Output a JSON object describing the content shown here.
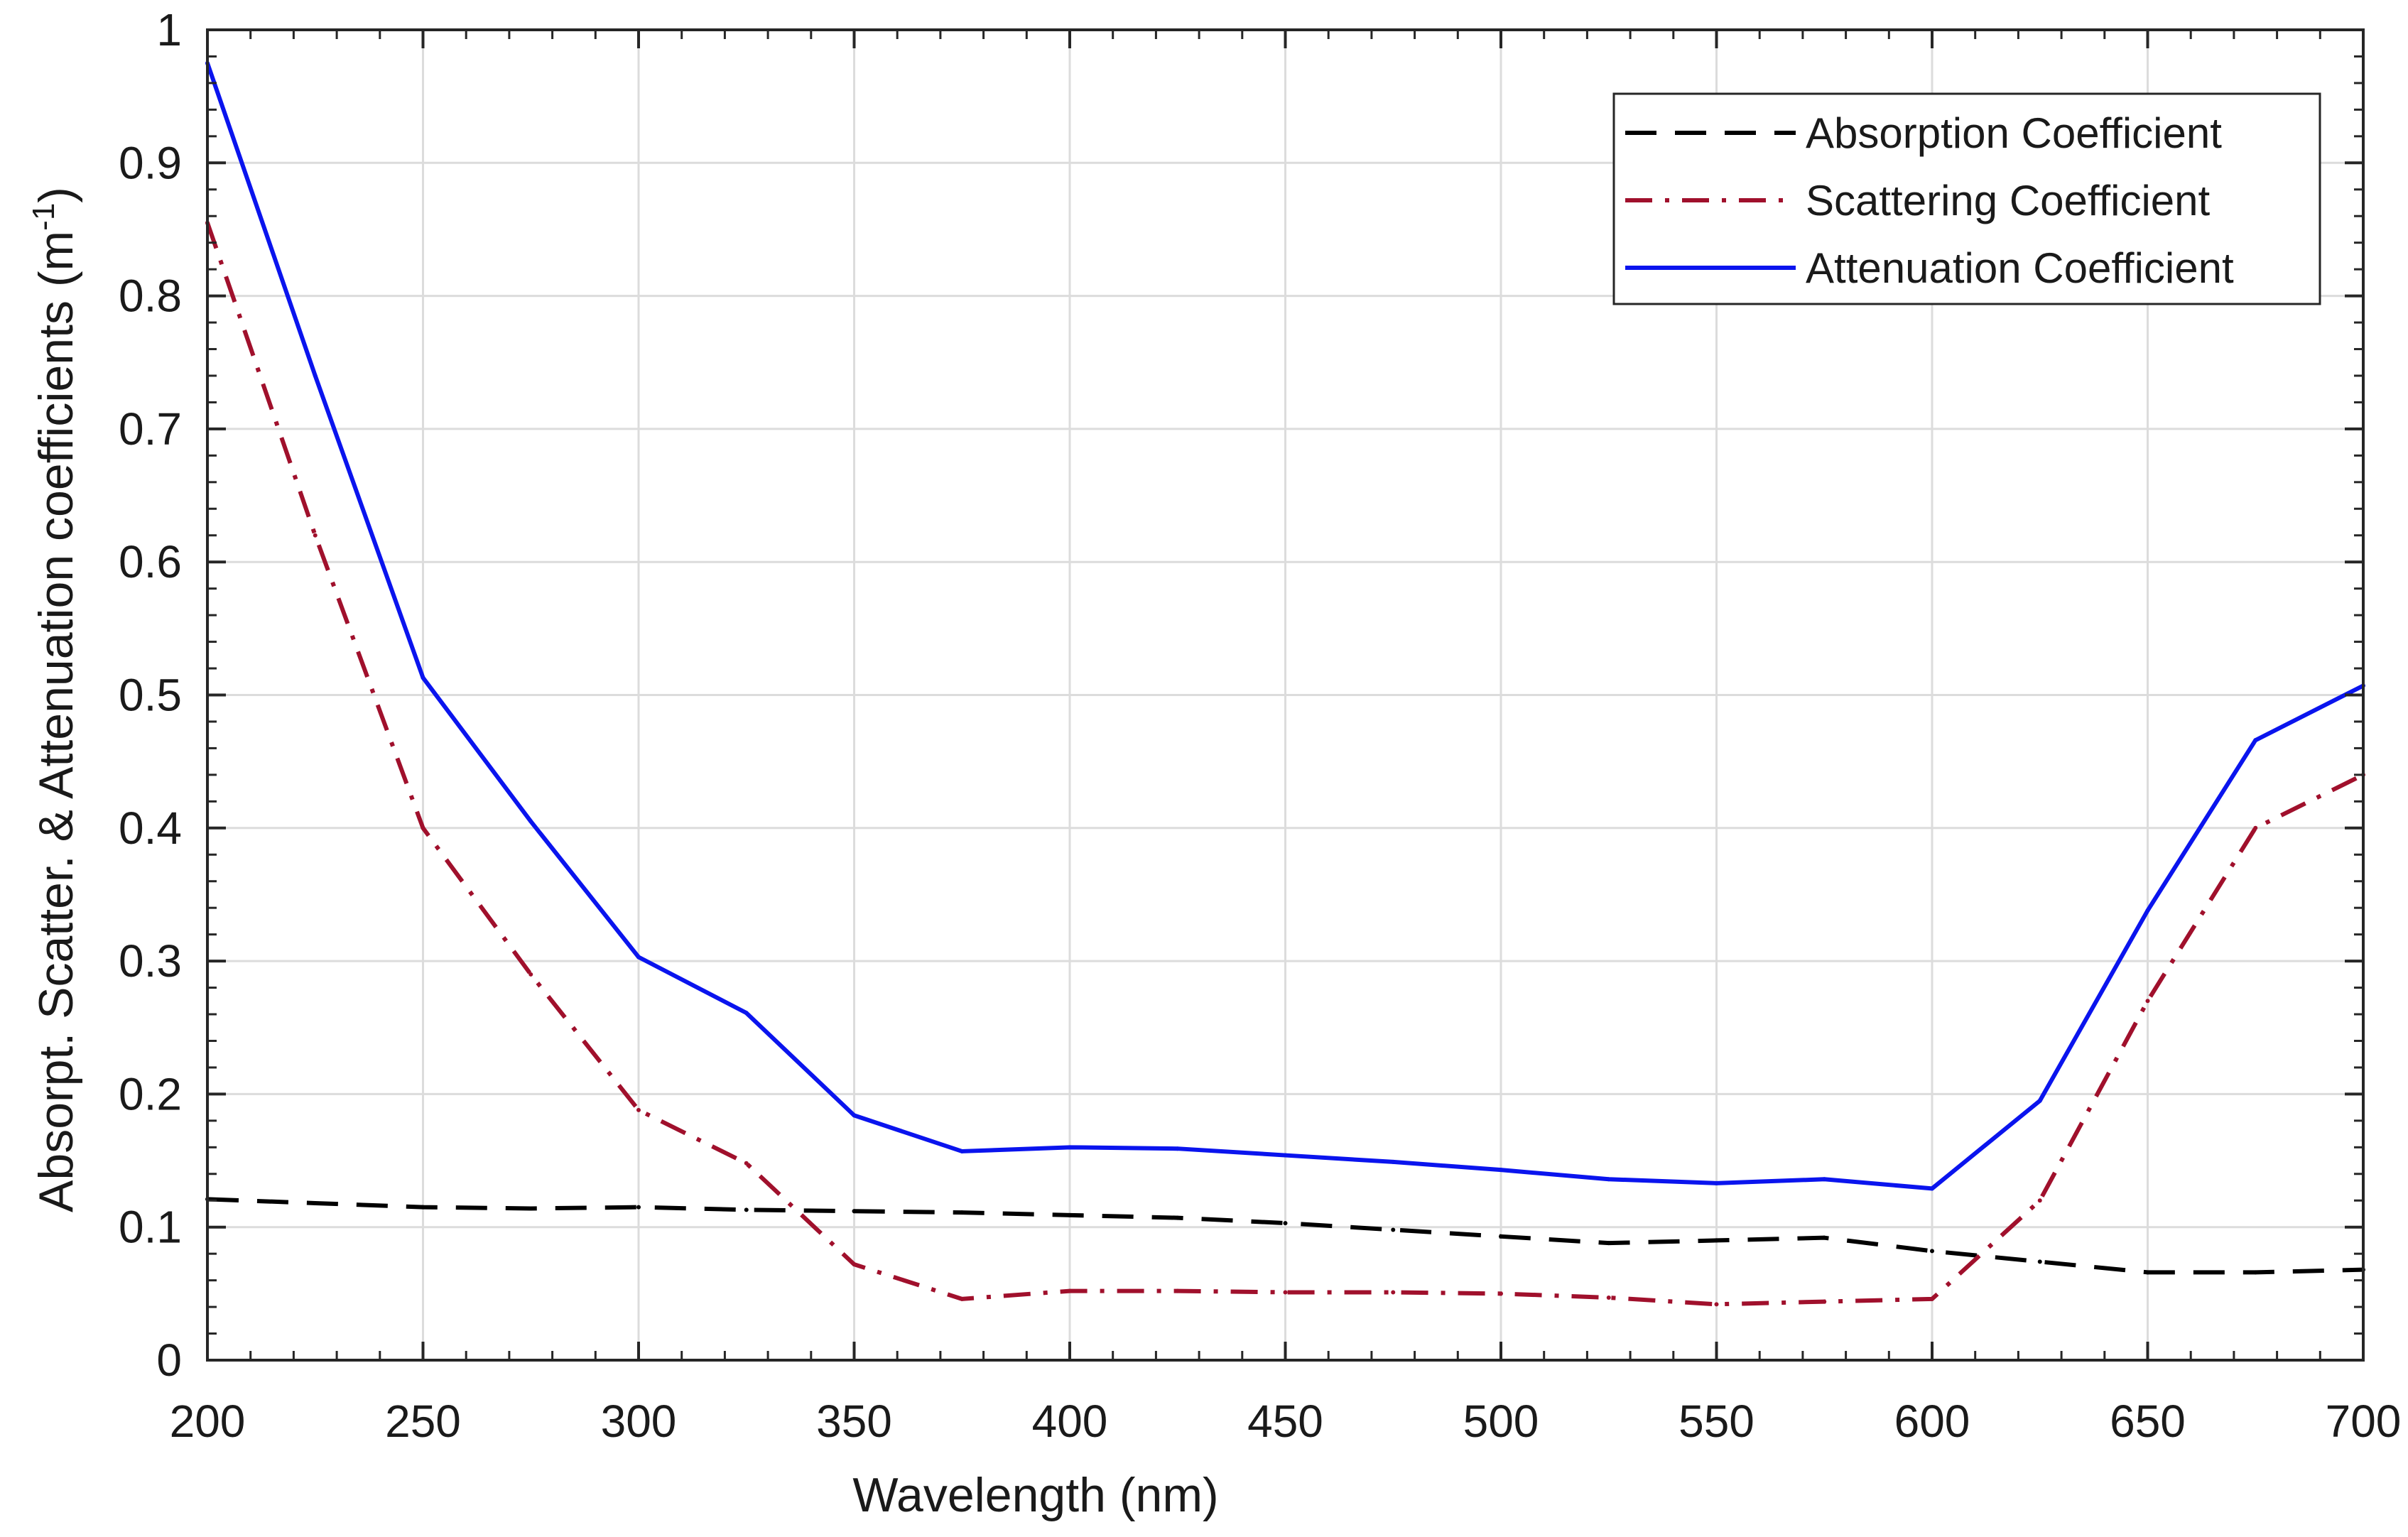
{
  "chart_data": {
    "type": "line",
    "title": "",
    "xlabel": "Wavelength (nm)",
    "ylabel": "Absorpt. Scatter. & Attenuation coefficients (m",
    "ylabel_sup": "-1",
    "ylabel_close": ")",
    "xlim": [
      200,
      700
    ],
    "ylim": [
      0,
      1
    ],
    "grid": true,
    "legend_position": "top-right",
    "x_ticks": [
      "200",
      "250",
      "300",
      "350",
      "400",
      "450",
      "500",
      "550",
      "600",
      "650",
      "700"
    ],
    "y_ticks": [
      "0",
      "0.1",
      "0.2",
      "0.3",
      "0.4",
      "0.5",
      "0.6",
      "0.7",
      "0.8",
      "0.9",
      "1"
    ],
    "x": [
      200,
      225,
      250,
      275,
      300,
      325,
      350,
      375,
      400,
      425,
      450,
      475,
      500,
      525,
      550,
      575,
      600,
      625,
      650,
      675,
      700
    ],
    "series": [
      {
        "name": "Absorption Coefficient",
        "color": "#000000",
        "style": "dashed",
        "values": [
          0.121,
          0.118,
          0.115,
          0.114,
          0.115,
          0.113,
          0.112,
          0.111,
          0.109,
          0.107,
          0.103,
          0.098,
          0.093,
          0.088,
          0.09,
          0.092,
          0.082,
          0.074,
          0.066,
          0.066,
          0.068
        ]
      },
      {
        "name": "Scattering Coefficient",
        "color": "#a0102c",
        "style": "dashdot",
        "values": [
          0.855,
          0.62,
          0.4,
          0.29,
          0.188,
          0.148,
          0.072,
          0.046,
          0.052,
          0.052,
          0.051,
          0.051,
          0.05,
          0.047,
          0.042,
          0.044,
          0.046,
          0.12,
          0.27,
          0.4,
          0.44
        ]
      },
      {
        "name": "Attenuation Coefficient",
        "color": "#0a14ee",
        "style": "solid",
        "values": [
          0.975,
          0.74,
          0.513,
          0.405,
          0.303,
          0.261,
          0.184,
          0.157,
          0.16,
          0.159,
          0.154,
          0.149,
          0.143,
          0.136,
          0.133,
          0.136,
          0.129,
          0.195,
          0.338,
          0.466,
          0.507
        ]
      }
    ]
  }
}
